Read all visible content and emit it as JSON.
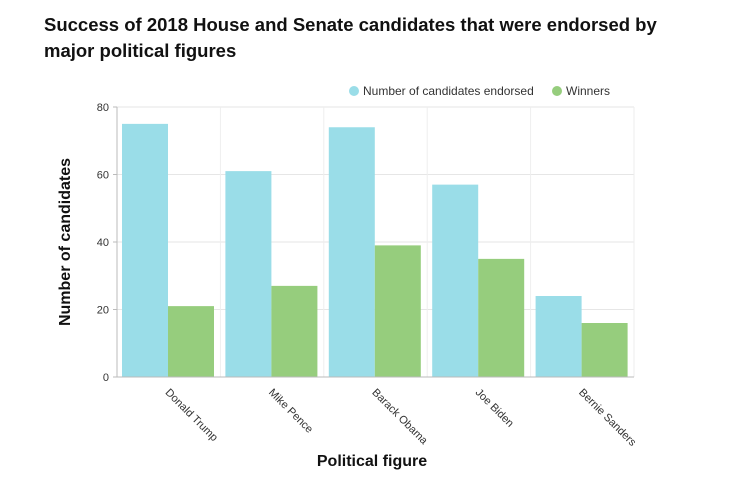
{
  "chart_data": {
    "type": "bar",
    "title": "Success of 2018 House and Senate candidates that were endorsed by major political figures",
    "categories": [
      "Donald Trump",
      "Mike Pence",
      "Barack Obama",
      "Joe Biden",
      "Bernie Sanders"
    ],
    "series": [
      {
        "name": "Number of candidates endorsed",
        "color": "#9adde8",
        "values": [
          75,
          61,
          74,
          57,
          24
        ]
      },
      {
        "name": "Winners",
        "color": "#96cd7d",
        "values": [
          21,
          27,
          39,
          35,
          16
        ]
      }
    ],
    "xlabel": "Political figure",
    "ylabel": "Number of candidates",
    "ylim": [
      0,
      80
    ],
    "yticks": [
      0,
      20,
      40,
      60,
      80
    ],
    "grid": true,
    "legend": "top-right"
  }
}
